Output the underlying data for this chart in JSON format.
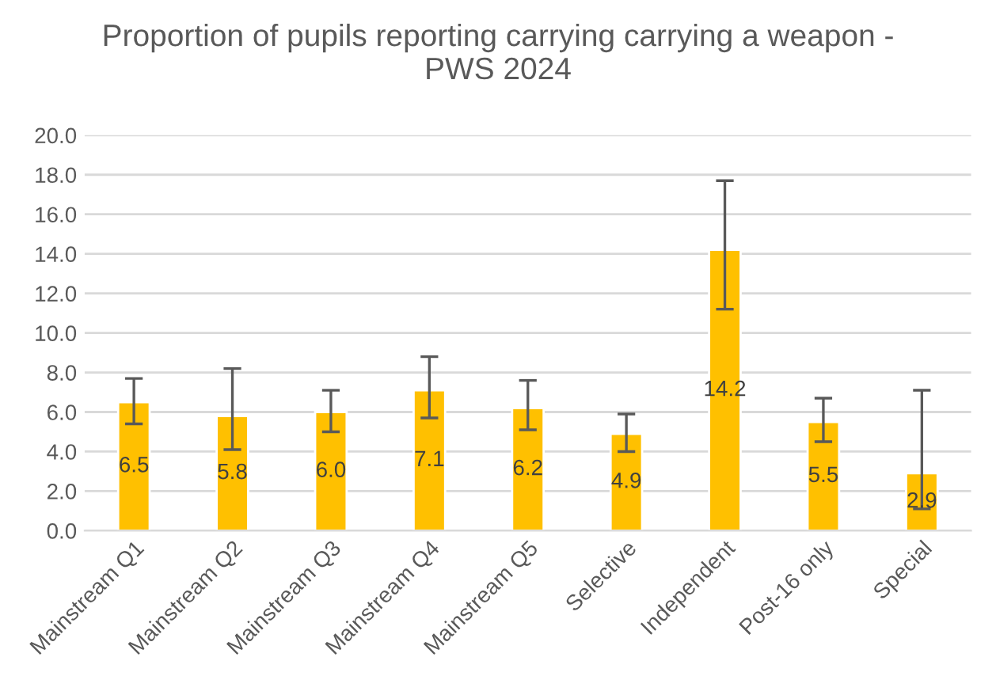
{
  "chart_data": {
    "type": "bar",
    "title": "Proportion of pupils reporting carrying carrying a weapon -\nPWS 2024",
    "categories": [
      "Mainstream Q1",
      "Mainstream Q2",
      "Mainstream Q3",
      "Mainstream Q4",
      "Mainstream Q5",
      "Selective",
      "Independent",
      "Post-16 only",
      "Special"
    ],
    "values": [
      6.5,
      5.8,
      6.0,
      7.1,
      6.2,
      4.9,
      14.2,
      5.5,
      2.9
    ],
    "errors": [
      [
        5.4,
        7.7
      ],
      [
        4.1,
        8.2
      ],
      [
        5.0,
        7.1
      ],
      [
        5.7,
        8.8
      ],
      [
        5.1,
        7.6
      ],
      [
        4.0,
        5.9
      ],
      [
        11.2,
        17.7
      ],
      [
        4.5,
        6.7
      ],
      [
        1.1,
        7.1
      ]
    ],
    "color": "#ffc000",
    "ylim": [
      0,
      20
    ],
    "yticks": [
      {
        "value": 0,
        "label": "0.0"
      },
      {
        "value": 2,
        "label": "2.0"
      },
      {
        "value": 4,
        "label": "4.0"
      },
      {
        "value": 6,
        "label": "6.0"
      },
      {
        "value": 8,
        "label": "8.0"
      },
      {
        "value": 10,
        "label": "10.0"
      },
      {
        "value": 12,
        "label": "12.0"
      },
      {
        "value": 14,
        "label": "14.0"
      },
      {
        "value": 16,
        "label": "16.0"
      },
      {
        "value": 18,
        "label": "18.0"
      },
      {
        "value": 20,
        "label": "20.0"
      }
    ],
    "value_labels": [
      "6.5",
      "5.8",
      "6.0",
      "7.1",
      "6.2",
      "4.9",
      "14.2",
      "5.5",
      "2.9"
    ],
    "grid": "y"
  }
}
